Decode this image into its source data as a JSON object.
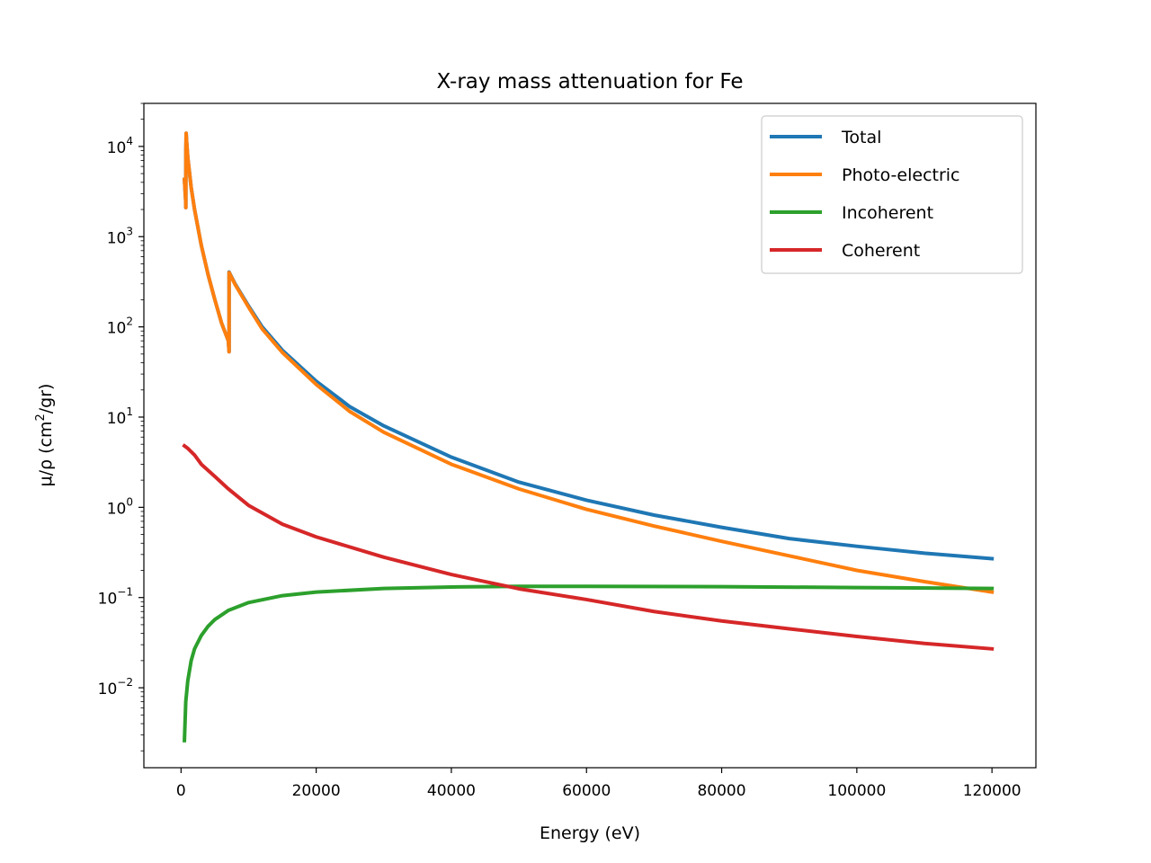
{
  "chart_data": {
    "type": "line",
    "title": "X-ray mass attenuation for Fe",
    "xlabel": "Energy (eV)",
    "ylabel": "μ/ρ (cm²/gr)",
    "ylabel_parts": {
      "main": "μ/ρ (cm",
      "sup": "2",
      "tail": "/gr)"
    },
    "xlim": [
      -5500,
      126500
    ],
    "ylim": [
      0.0013,
      30000
    ],
    "yscale": "log",
    "x_ticks": [
      0,
      20000,
      40000,
      60000,
      80000,
      100000,
      120000
    ],
    "x_tick_labels": [
      "0",
      "20000",
      "40000",
      "60000",
      "80000",
      "100000",
      "120000"
    ],
    "y_ticks": [
      {
        "base": "10",
        "exp": "−2",
        "value": 0.01
      },
      {
        "base": "10",
        "exp": "−1",
        "value": 0.1
      },
      {
        "base": "10",
        "exp": "0",
        "value": 1
      },
      {
        "base": "10",
        "exp": "1",
        "value": 10
      },
      {
        "base": "10",
        "exp": "2",
        "value": 100
      },
      {
        "base": "10",
        "exp": "3",
        "value": 1000
      },
      {
        "base": "10",
        "exp": "4",
        "value": 10000
      }
    ],
    "grid": false,
    "legend_position": "top-right",
    "series": [
      {
        "name": "Total",
        "color": "#1f77b4",
        "x": [
          500,
          700,
          708,
          720,
          760,
          800,
          1000,
          1500,
          2000,
          3000,
          4000,
          5000,
          6000,
          7000,
          7111,
          7112,
          8000,
          10000,
          12000,
          15000,
          20000,
          25000,
          30000,
          40000,
          50000,
          60000,
          70000,
          80000,
          90000,
          100000,
          110000,
          120000
        ],
        "y": [
          4300,
          2400,
          2100,
          9000,
          14000,
          12000,
          7500,
          3500,
          2000,
          800,
          380,
          200,
          110,
          70,
          53,
          405,
          300,
          170,
          100,
          55,
          25,
          13,
          8,
          3.6,
          1.9,
          1.2,
          0.82,
          0.6,
          0.45,
          0.37,
          0.31,
          0.27
        ]
      },
      {
        "name": "Photo-electric",
        "color": "#ff7f0e",
        "x": [
          500,
          700,
          708,
          720,
          760,
          800,
          1000,
          1500,
          2000,
          3000,
          4000,
          5000,
          6000,
          7000,
          7111,
          7112,
          8000,
          10000,
          12000,
          15000,
          20000,
          25000,
          30000,
          40000,
          50000,
          60000,
          70000,
          80000,
          90000,
          100000,
          110000,
          120000
        ],
        "y": [
          4300,
          2400,
          2100,
          9000,
          14000,
          12000,
          7500,
          3500,
          2000,
          800,
          380,
          200,
          110,
          70,
          53,
          400,
          295,
          165,
          95,
          52,
          23,
          11.5,
          6.8,
          3,
          1.6,
          0.95,
          0.62,
          0.42,
          0.29,
          0.2,
          0.15,
          0.115
        ]
      },
      {
        "name": "Incoherent",
        "color": "#2ca02c",
        "x": [
          500,
          700,
          1000,
          1500,
          2000,
          3000,
          4000,
          5000,
          7000,
          10000,
          15000,
          20000,
          30000,
          40000,
          50000,
          60000,
          80000,
          100000,
          120000
        ],
        "y": [
          0.0026,
          0.007,
          0.012,
          0.02,
          0.027,
          0.038,
          0.048,
          0.057,
          0.072,
          0.088,
          0.105,
          0.115,
          0.126,
          0.131,
          0.133,
          0.133,
          0.132,
          0.129,
          0.126
        ]
      },
      {
        "name": "Coherent",
        "color": "#d62728",
        "x": [
          500,
          1000,
          2000,
          3000,
          5000,
          7000,
          10000,
          15000,
          20000,
          30000,
          40000,
          50000,
          60000,
          70000,
          80000,
          90000,
          100000,
          110000,
          120000
        ],
        "y": [
          4.8,
          4.5,
          3.8,
          3.0,
          2.2,
          1.6,
          1.05,
          0.65,
          0.47,
          0.28,
          0.18,
          0.125,
          0.095,
          0.07,
          0.055,
          0.045,
          0.037,
          0.031,
          0.027
        ]
      }
    ]
  }
}
